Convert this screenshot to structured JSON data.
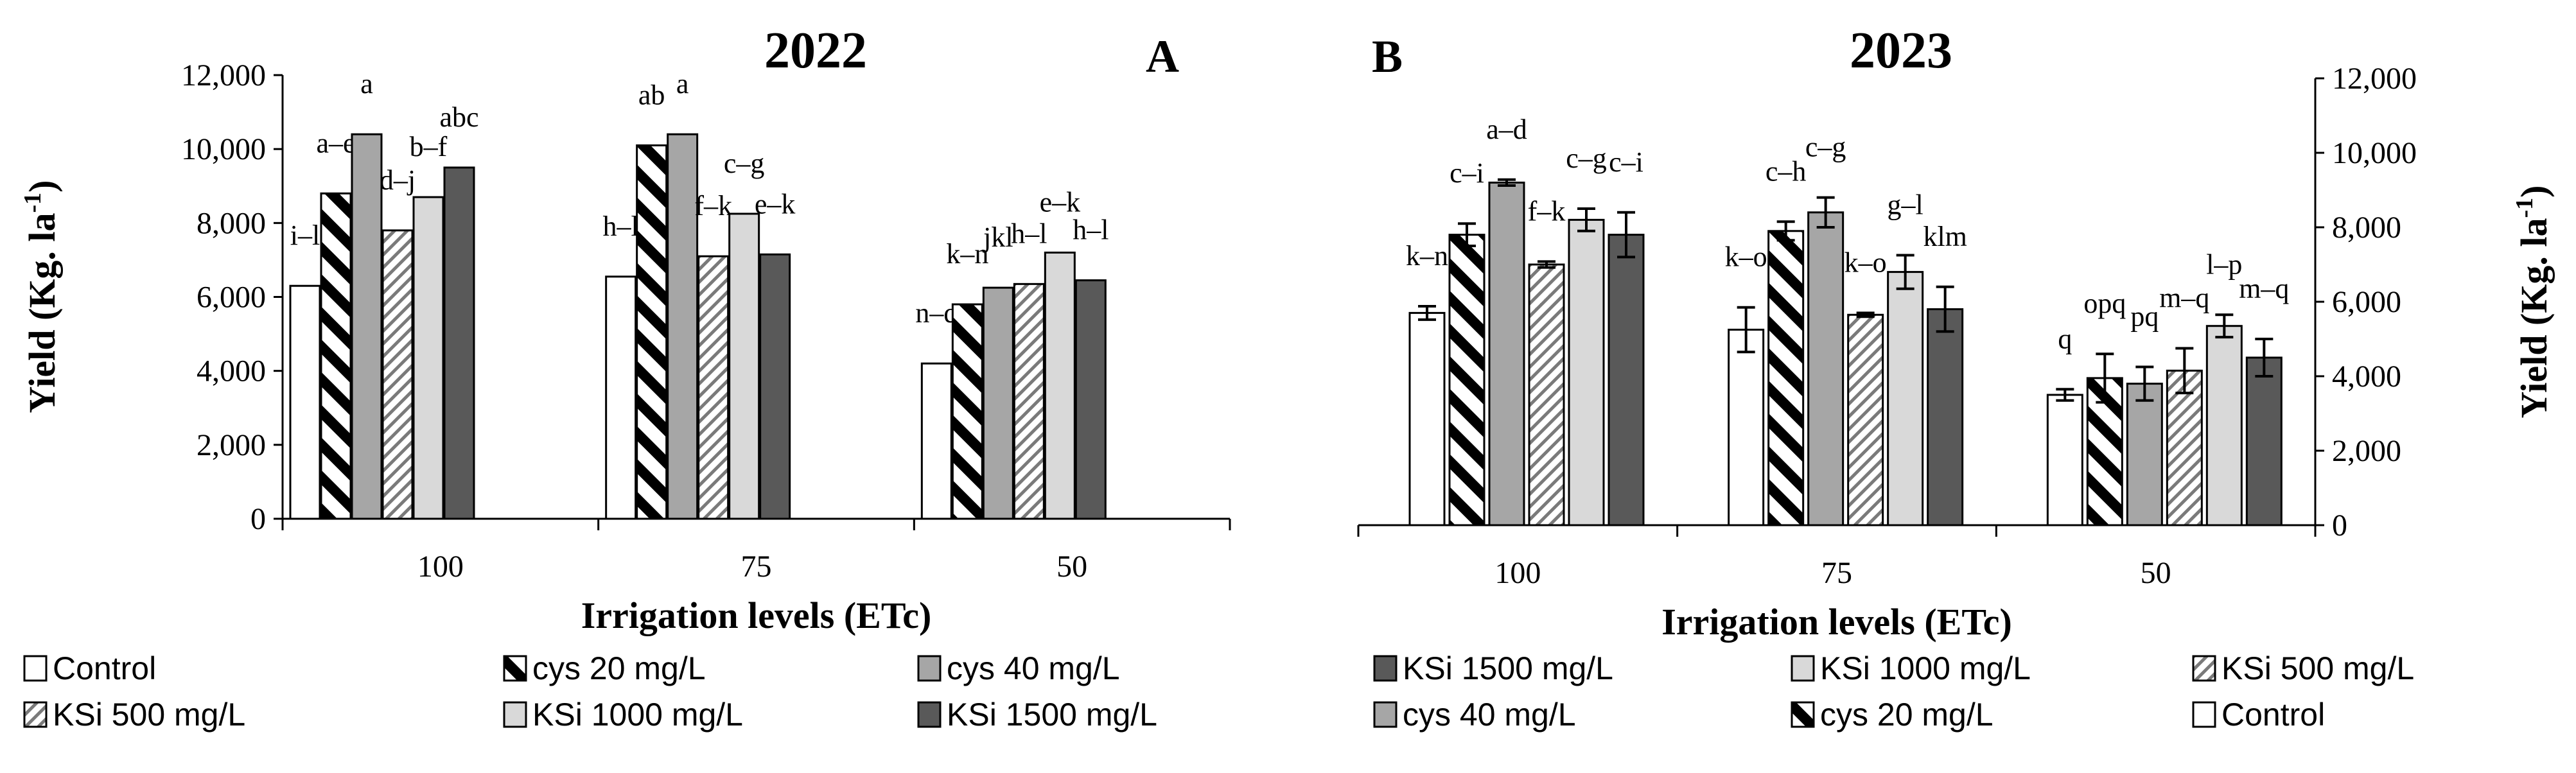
{
  "chart_data": [
    {
      "type": "bar",
      "panel_label": "A",
      "title": "2022",
      "xlabel": "Irrigation levels (ETc)",
      "ylabel_main": "Yield (Kg. la",
      "ylabel_sup": "-1",
      "ylabel_end": ")",
      "ylim": [
        0,
        12000
      ],
      "yticks": [
        "0",
        "2,000",
        "4,000",
        "6,000",
        "8,000",
        "10,000",
        "12,000"
      ],
      "categories": [
        "100",
        "75",
        "50"
      ],
      "series": [
        {
          "name": "Control",
          "pattern": "white",
          "values": [
            6300,
            6550,
            4200
          ],
          "letters": [
            "i–l",
            "h–l",
            "n–q"
          ]
        },
        {
          "name": "cys 20 mg/L",
          "pattern": "bold-diag",
          "values": [
            8800,
            10100,
            5800
          ],
          "letters": [
            "a–e",
            "ab",
            "k–n"
          ]
        },
        {
          "name": "cys 40 mg/L",
          "pattern": "gray",
          "values": [
            10400,
            10400,
            6250
          ],
          "letters": [
            "a",
            "a",
            "jkl"
          ]
        },
        {
          "name": "KSi 500 mg/L",
          "pattern": "light-diag",
          "values": [
            7800,
            7100,
            6350
          ],
          "letters": [
            "d–j",
            "f–k",
            "h–l"
          ]
        },
        {
          "name": "KSi 1000 mg/L",
          "pattern": "light-gray",
          "values": [
            8700,
            8250,
            7200
          ],
          "letters": [
            "b–f",
            "c–g",
            "e–k"
          ]
        },
        {
          "name": "KSi 1500 mg/L",
          "pattern": "dark",
          "values": [
            9500,
            7150,
            6450
          ],
          "letters": [
            "abc",
            "e–k",
            "h–l"
          ]
        }
      ],
      "legend": [
        [
          "Control",
          "cys 20 mg/L",
          "cys 40 mg/L"
        ],
        [
          "KSi 500 mg/L",
          "KSi 1000 mg/L",
          "KSi 1500 mg/L"
        ]
      ]
    },
    {
      "type": "bar",
      "panel_label": "B",
      "title": "2023",
      "xlabel": "Irrigation levels (ETc)",
      "ylabel_main": "Yield (Kg. la",
      "ylabel_sup": "-1",
      "ylabel_end": ")",
      "ylim": [
        0,
        12000
      ],
      "yticks": [
        "0",
        "2,000",
        "4,000",
        "6,000",
        "8,000",
        "10,000",
        "12,000"
      ],
      "categories": [
        "100",
        "75",
        "50"
      ],
      "series": [
        {
          "name": "Control",
          "pattern": "white",
          "values": [
            5700,
            5250,
            3500
          ],
          "errors": [
            180,
            600,
            150
          ],
          "letters": [
            "k–n",
            "k–o",
            "q"
          ]
        },
        {
          "name": "cys 20 mg/L",
          "pattern": "bold-diag",
          "values": [
            7800,
            7900,
            3950
          ],
          "errors": [
            300,
            250,
            650
          ],
          "letters": [
            "c–i",
            "c–h",
            "opq"
          ]
        },
        {
          "name": "cys 40 mg/L",
          "pattern": "gray",
          "values": [
            9200,
            8400,
            3800
          ],
          "errors": [
            80,
            400,
            450
          ],
          "letters": [
            "a–d",
            "c–g",
            "pq"
          ]
        },
        {
          "name": "KSi 500 mg/L",
          "pattern": "light-diag",
          "values": [
            7000,
            5650,
            4150
          ],
          "errors": [
            80,
            50,
            600
          ],
          "letters": [
            "f–k",
            "k–o",
            "m–q"
          ]
        },
        {
          "name": "KSi 1000 mg/L",
          "pattern": "light-gray",
          "values": [
            8200,
            6800,
            5350
          ],
          "errors": [
            300,
            450,
            300
          ],
          "letters": [
            "c–g",
            "g–l",
            "l–p"
          ]
        },
        {
          "name": "KSi 1500 mg/L",
          "pattern": "dark",
          "values": [
            7800,
            5800,
            4500
          ],
          "errors": [
            600,
            600,
            500
          ],
          "letters": [
            "c–i",
            "klm",
            "m–q"
          ]
        }
      ],
      "legend": [
        [
          "KSi 1500 mg/L",
          "KSi 1000 mg/L",
          "KSi 500 mg/L"
        ],
        [
          "cys 40 mg/L",
          "cys 20 mg/L",
          "Control"
        ]
      ]
    }
  ]
}
